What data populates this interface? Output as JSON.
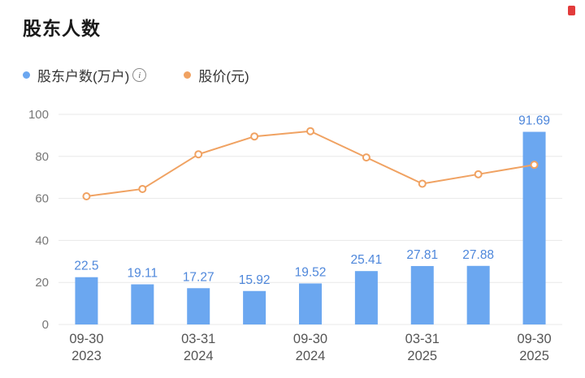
{
  "header": {
    "title": "股东人数",
    "corner_mark_color": "#e23b3b"
  },
  "legend": {
    "info_glyph": "i",
    "items": [
      {
        "label": "股东户数(万户)",
        "color": "#6ba7f0",
        "has_info_icon": true
      },
      {
        "label": "股价(元)",
        "color": "#f0a262",
        "has_info_icon": false
      }
    ]
  },
  "chart_data": {
    "type": "bar+line",
    "title": "股东人数",
    "categories": [
      "09-30 2023",
      "",
      "03-31 2024",
      "",
      "09-30 2024",
      "",
      "03-31 2025",
      "",
      "09-30 2025"
    ],
    "x_tick_labels": [
      {
        "slot": 0,
        "lines": [
          "09-30",
          "2023"
        ]
      },
      {
        "slot": 2,
        "lines": [
          "03-31",
          "2024"
        ]
      },
      {
        "slot": 4,
        "lines": [
          "09-30",
          "2024"
        ]
      },
      {
        "slot": 6,
        "lines": [
          "03-31",
          "2025"
        ]
      },
      {
        "slot": 8,
        "lines": [
          "09-30",
          "2025"
        ]
      }
    ],
    "series": [
      {
        "name": "股东户数(万户)",
        "type": "bar",
        "color": "#6ba7f0",
        "values": [
          22.5,
          19.11,
          17.27,
          15.92,
          19.52,
          25.41,
          27.81,
          27.88,
          91.69
        ],
        "labels": [
          "22.5",
          "19.11",
          "17.27",
          "15.92",
          "19.52",
          "25.41",
          "27.81",
          "27.88",
          "91.69"
        ]
      },
      {
        "name": "股价(元)",
        "type": "line",
        "color": "#f0a262",
        "values": [
          61,
          64.5,
          81,
          89.5,
          92,
          79.5,
          67,
          71.5,
          76
        ]
      }
    ],
    "ylim": [
      0,
      100
    ],
    "yticks": [
      0,
      20,
      40,
      60,
      80,
      100
    ],
    "grid": true,
    "legend_position": "top-left",
    "value_label_color": "#4e87db",
    "axis_text_color": "#777777",
    "x_label_color": "#555555",
    "grid_color": "#e8e8e8"
  }
}
